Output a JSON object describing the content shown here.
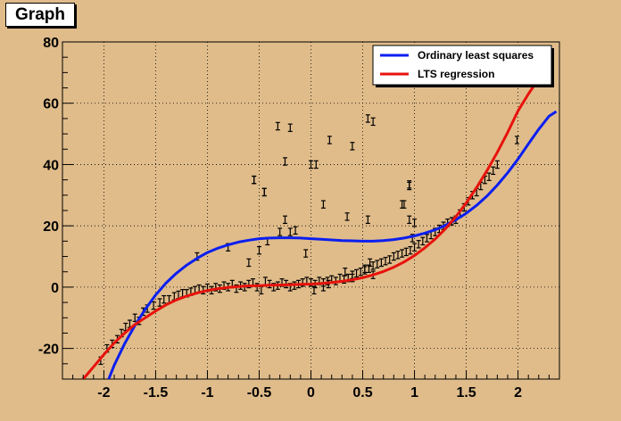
{
  "title": "Graph",
  "legend": {
    "placement": "top-right",
    "entries": [
      {
        "label": "Ordinary least squares",
        "color": "#0b1fef"
      },
      {
        "label": "LTS regression",
        "color": "#e8120c"
      }
    ]
  },
  "colors": {
    "canvas_background": "#e0bc8a",
    "plot_background": "#e0bc8a",
    "frame": "#000000",
    "grid": "#000000",
    "error_bars": "#000000"
  },
  "chart_data": {
    "type": "scatter",
    "title": "Graph",
    "xlabel": "",
    "ylabel": "",
    "xlim": [
      -2.4,
      2.4
    ],
    "ylim": [
      -30,
      80
    ],
    "grid": "dotted",
    "xticks": [
      -2,
      -1.5,
      -1,
      -0.5,
      0,
      0.5,
      1,
      1.5,
      2
    ],
    "xtick_labels": [
      "-2",
      "-1.5",
      "-1",
      "-0.5",
      "0",
      "0.5",
      "1",
      "1.5",
      "2"
    ],
    "yticks": [
      -20,
      0,
      20,
      40,
      60,
      80
    ],
    "ytick_labels": [
      "-20",
      "0",
      "20",
      "40",
      "60",
      "80"
    ],
    "error_bar_halfwidth": 1.2,
    "series": [
      {
        "name": "Ordinary least squares",
        "kind": "line",
        "color": "#0b1fef",
        "x": [
          -2.0,
          -1.9,
          -1.8,
          -1.7,
          -1.6,
          -1.5,
          -1.4,
          -1.3,
          -1.2,
          -1.1,
          -1.0,
          -0.9,
          -0.8,
          -0.7,
          -0.6,
          -0.5,
          -0.4,
          -0.3,
          -0.2,
          -0.1,
          0.0,
          0.1,
          0.2,
          0.3,
          0.4,
          0.5,
          0.6,
          0.7,
          0.8,
          0.9,
          1.0,
          1.1,
          1.2,
          1.3,
          1.4,
          1.5,
          1.6,
          1.7,
          1.8,
          1.9,
          2.0,
          2.1,
          2.2,
          2.3,
          2.37
        ],
        "y": [
          -34,
          -25.5,
          -18.5,
          -12.5,
          -7.2,
          -2.6,
          1.3,
          4.5,
          7.2,
          9.4,
          11.3,
          12.7,
          13.8,
          14.7,
          15.3,
          15.8,
          16.0,
          16.1,
          16.1,
          16.0,
          15.8,
          15.6,
          15.4,
          15.2,
          15.1,
          15.0,
          15.0,
          15.2,
          15.5,
          16.0,
          16.7,
          17.6,
          18.7,
          20.2,
          22.0,
          24.1,
          26.7,
          29.7,
          33.3,
          37.3,
          41.8,
          46.7,
          51.5,
          55.8,
          57.3
        ]
      },
      {
        "name": "LTS regression",
        "kind": "line",
        "color": "#e8120c",
        "x": [
          -2.2,
          -2.1,
          -2.0,
          -1.9,
          -1.8,
          -1.7,
          -1.6,
          -1.5,
          -1.4,
          -1.3,
          -1.2,
          -1.1,
          -1.0,
          -0.9,
          -0.8,
          -0.7,
          -0.6,
          -0.5,
          -0.4,
          -0.3,
          -0.2,
          -0.1,
          0.0,
          0.1,
          0.2,
          0.3,
          0.4,
          0.5,
          0.6,
          0.7,
          0.8,
          0.9,
          1.0,
          1.1,
          1.2,
          1.3,
          1.4,
          1.5,
          1.6,
          1.7,
          1.8,
          1.9,
          2.0,
          2.1,
          2.2,
          2.28
        ],
        "y": [
          -30,
          -26,
          -22,
          -18.2,
          -15,
          -12.2,
          -10,
          -7.8,
          -5.8,
          -4.2,
          -2.9,
          -1.9,
          -1.1,
          -0.5,
          -0.1,
          0.2,
          0.4,
          0.5,
          0.6,
          0.7,
          0.8,
          0.9,
          1.0,
          1.2,
          1.5,
          1.9,
          2.4,
          3.1,
          4.0,
          5.1,
          6.5,
          8.2,
          10.3,
          12.8,
          15.7,
          19.1,
          23.0,
          27.5,
          32.5,
          38.0,
          44.0,
          50.5,
          57.5,
          63.0,
          68.0,
          71.5
        ]
      },
      {
        "name": "",
        "kind": "errorbar",
        "x": [
          -2.03,
          -1.97,
          -1.92,
          -1.87,
          -1.83,
          -1.79,
          -1.75,
          -1.7,
          -1.66,
          -1.62,
          -1.58,
          -1.52,
          -1.46,
          -1.42,
          -1.37,
          -1.32,
          -1.28,
          -1.24,
          -1.2,
          -1.16,
          -1.12,
          -1.08,
          -1.04,
          -1.0,
          -0.96,
          -0.92,
          -0.88,
          -0.84,
          -0.8,
          -0.76,
          -0.72,
          -0.68,
          -0.64,
          -0.6,
          -0.56,
          -0.52,
          -0.48,
          -0.44,
          -0.4,
          -0.36,
          -0.32,
          -0.28,
          -0.24,
          -0.2,
          -0.16,
          -0.12,
          -0.08,
          -0.04,
          0.0,
          0.04,
          0.08,
          0.12,
          0.16,
          0.2,
          0.24,
          0.28,
          0.32,
          0.36,
          0.4,
          0.44,
          0.48,
          0.52,
          0.56,
          0.6,
          0.64,
          0.68,
          0.72,
          0.76,
          0.8,
          0.84,
          0.88,
          0.92,
          0.96,
          1.0,
          1.04,
          1.08,
          1.12,
          1.16,
          1.2,
          1.24,
          1.28,
          1.32,
          1.36,
          1.4,
          1.44,
          1.48,
          1.52,
          1.56,
          1.6,
          1.64,
          1.68,
          1.72,
          1.76,
          1.8,
          1.99,
          -1.1,
          -0.8,
          -0.6,
          -0.5,
          -0.42,
          -0.3,
          -0.25,
          -0.2,
          -0.05,
          0.03,
          0.12,
          0.17,
          0.33,
          0.4,
          0.52,
          0.57,
          0.6,
          0.88,
          0.95,
          -0.55,
          -0.45,
          -0.2,
          0.05,
          0.95,
          0.98
        ],
        "y": [
          -24,
          -20,
          -18.5,
          -17,
          -15,
          -13,
          -12,
          -10,
          -11,
          -8,
          -7,
          -6,
          -5,
          -4,
          -4,
          -3,
          -2.5,
          -2,
          -2,
          -1.5,
          -1,
          -0.5,
          -1,
          -0.2,
          -1,
          0,
          -0.5,
          0.5,
          0,
          1,
          -0.5,
          0.5,
          0,
          1,
          1.5,
          0,
          -1,
          2,
          1,
          0,
          0.5,
          1.5,
          1,
          0,
          0.5,
          1,
          1.5,
          2,
          1.5,
          1,
          2,
          1.5,
          2,
          2.5,
          2,
          3,
          2.5,
          3,
          4,
          4.5,
          5,
          5.5,
          6,
          7,
          7.5,
          8,
          8.5,
          9,
          10,
          10.5,
          11,
          11.5,
          12,
          13,
          14,
          15,
          16,
          17,
          18,
          19,
          20,
          21,
          21.5,
          22,
          24,
          26,
          28,
          30,
          31,
          33,
          35,
          36,
          38,
          40,
          48,
          10,
          13,
          8,
          12,
          15,
          18,
          22,
          18,
          11,
          -1,
          0,
          1,
          5,
          3,
          6,
          8,
          4,
          27,
          33,
          35,
          31,
          52,
          40,
          22,
          16
        ],
        "outliers": [
          {
            "x": -0.32,
            "y": 52.5
          },
          {
            "x": -0.45,
            "y": 31
          },
          {
            "x": -0.55,
            "y": 35
          },
          {
            "x": -0.25,
            "y": 41
          },
          {
            "x": -0.15,
            "y": 18.5
          },
          {
            "x": 0.0,
            "y": 40
          },
          {
            "x": 0.12,
            "y": 27
          },
          {
            "x": 0.18,
            "y": 48
          },
          {
            "x": 0.35,
            "y": 23
          },
          {
            "x": 0.4,
            "y": 46
          },
          {
            "x": 0.55,
            "y": 55
          },
          {
            "x": 0.6,
            "y": 54
          },
          {
            "x": 0.55,
            "y": 22
          },
          {
            "x": 0.9,
            "y": 27
          },
          {
            "x": 0.95,
            "y": 33.5
          },
          {
            "x": 1.0,
            "y": 21
          }
        ]
      }
    ]
  }
}
